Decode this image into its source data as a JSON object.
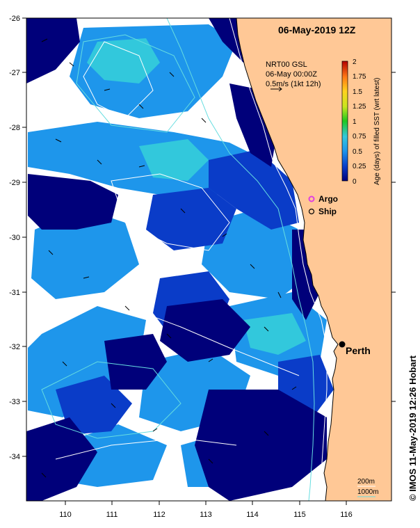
{
  "map": {
    "title": "06-May-2019 12Z",
    "region": {
      "lon_min": 109.25,
      "lon_max": 117.0,
      "lat_min": -34.8,
      "lat_max": -26.0
    },
    "lon_ticks": [
      "110",
      "111",
      "112",
      "113",
      "114",
      "115",
      "116"
    ],
    "lat_ticks": [
      "-26",
      "-27",
      "-28",
      "-29",
      "-30",
      "-31",
      "-32",
      "-33",
      "-34"
    ],
    "info_lines": [
      "NRT00 GSL",
      "06-May 00:00Z",
      "0.5m/s (1kt 12h)"
    ],
    "colorbar": {
      "label": "Age (days) of filled SST (wrt latest)",
      "ticks": [
        "0",
        "0.25",
        "0.5",
        "0.75",
        "1",
        "1.25",
        "1.5",
        "1.75",
        "2"
      ],
      "range": [
        0,
        2
      ]
    },
    "legend": {
      "argo_label": "Argo",
      "ship_label": "Ship"
    },
    "city": {
      "name": "Perth",
      "lon": 115.86,
      "lat": -31.95
    },
    "isobaths": {
      "shallow_label": "200m",
      "deep_label": "1000m"
    },
    "credit": "© IMOS 11-May-2019 12:26 Hobart",
    "colors": {
      "land": "#ffc896",
      "age_0": "#00007a",
      "age_0_25": "#0a3cc8",
      "age_0_5": "#1e96eb",
      "age_0_75": "#32c8dc",
      "no_data": "#ffffff",
      "coast": "#000000",
      "isobath_200": "#ffffff",
      "isobath_1000": "#66dde0",
      "argo": "#e040e0"
    }
  }
}
